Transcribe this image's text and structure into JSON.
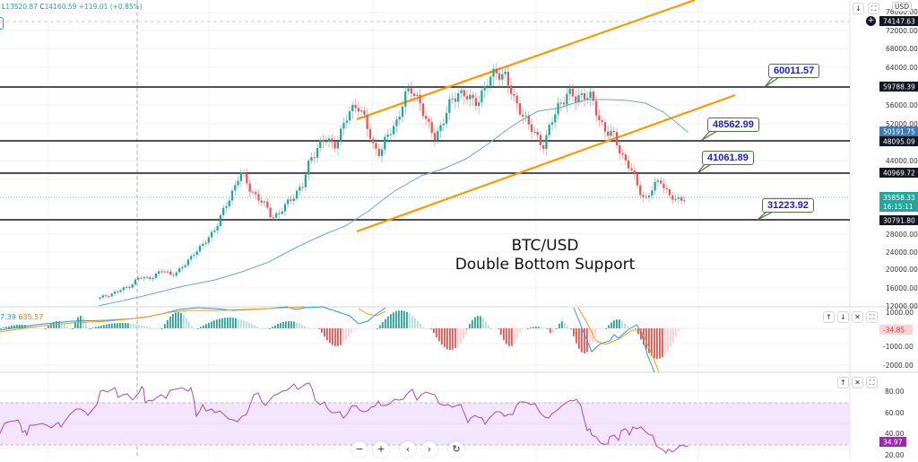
{
  "header": {
    "ohlc_label_low": "L",
    "low_value": "13520.87",
    "ohlc_label_close": "C",
    "close_value": "14160.59",
    "change": "+119.01 (+0.85%)",
    "currency": "USD"
  },
  "title": {
    "line1": "BTC/USD",
    "line2": "Double Bottom Support"
  },
  "callouts": [
    {
      "label": "60011.57"
    },
    {
      "label": "48562.99"
    },
    {
      "label": "41061.89"
    },
    {
      "label": "31223.92"
    }
  ],
  "price_axis": {
    "ticks": [
      "76000.00",
      "72000.00",
      "68000.00",
      "64000.00",
      "56000.00",
      "52000.00",
      "44000.00",
      "28000.00",
      "24000.00",
      "20000.00",
      "16000.00",
      "12000.00"
    ],
    "crosshair_price": "74147.63",
    "tags": {
      "level_59788": "59788.39",
      "ma_value": "50191.75",
      "level_48095": "48095.09",
      "level_40969": "40969.72",
      "last_price": "35858.33",
      "countdown": "16:15:11",
      "level_30791": "30791.80"
    }
  },
  "macd": {
    "legend_value1": "7.39",
    "legend_value2": "635.57",
    "axis_ticks": [
      "1000.00",
      "-1000.00",
      "-2000.00"
    ],
    "current_tag": "-34.85"
  },
  "rsi": {
    "axis_ticks": [
      "80.00",
      "60.00",
      "40.00",
      "20.00"
    ],
    "current_tag": "34.97"
  },
  "pane_buttons": {
    "up": "↑",
    "down": "↓",
    "close": "✕",
    "maximize": "⛶"
  },
  "nav_buttons": {
    "zoom_out": "−",
    "zoom_in": "+",
    "scroll_left": "‹",
    "scroll_right": "›",
    "reset": "↻"
  },
  "colors": {
    "bull": "#26a69a",
    "bear": "#ef5350",
    "channel": "#ff9800",
    "ma": "#5b9bd5",
    "rsi_line": "#ab47bc",
    "rsi_band": "#f3e5fc",
    "callout_text": "#1a1adb",
    "callout_border": "#4a7a3a"
  },
  "chart_data": {
    "type": "candlestick",
    "title": "BTC/USD Double Bottom Support",
    "ylabel": "USD",
    "ylim": [
      10000,
      77000
    ],
    "horizontal_levels": [
      59788.39,
      48095.09,
      40969.72,
      30791.8
    ],
    "annotated_levels": [
      60011.57,
      48562.99,
      41061.89,
      31223.92
    ],
    "last_price": 35858.33,
    "moving_average_last": 50191.75,
    "ascending_channel": {
      "upper": [
        [
          398,
          60000
        ],
        [
          770,
          76500
        ]
      ],
      "lower": [
        [
          398,
          28500
        ],
        [
          820,
          53000
        ]
      ]
    },
    "approx_close_path": [
      13500,
      14200,
      14800,
      15500,
      16500,
      18000,
      17800,
      18500,
      19500,
      18800,
      19200,
      21000,
      23500,
      24500,
      27000,
      29500,
      33000,
      37000,
      41000,
      38000,
      36000,
      34000,
      31500,
      32000,
      34000,
      36500,
      38000,
      44000,
      47000,
      48000,
      47000,
      50000,
      54000,
      56500,
      52000,
      47000,
      45500,
      49000,
      52000,
      57000,
      59000,
      57000,
      51000,
      49000,
      52000,
      56000,
      59000,
      57500,
      56000,
      58500,
      61000,
      63500,
      62000,
      57000,
      55000,
      51000,
      49000,
      47000,
      52000,
      56500,
      58000,
      57000,
      58500,
      57000,
      53000,
      50000,
      48500,
      45000,
      42000,
      38000,
      35000,
      37500,
      39500,
      36000,
      34500,
      35858
    ],
    "indicators": {
      "macd": {
        "histogram_last": -34.85,
        "ticks": [
          1000,
          -1000,
          -2000
        ]
      },
      "rsi": {
        "last": 34.97,
        "band": [
          30,
          70
        ],
        "ticks": [
          80,
          60,
          40,
          20
        ]
      }
    }
  }
}
